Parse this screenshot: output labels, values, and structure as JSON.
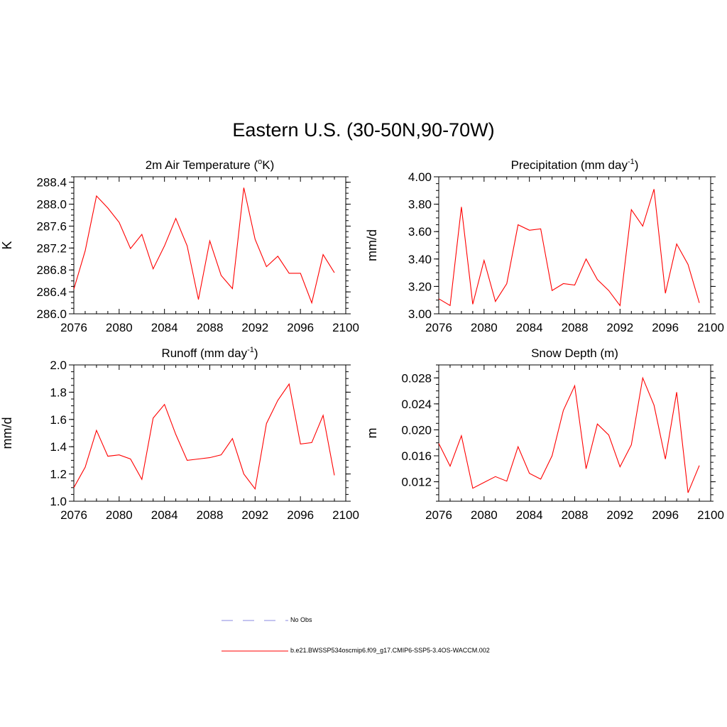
{
  "title": "Eastern U.S. (30-50N,90-70W)",
  "colors": {
    "model": "#ff0000",
    "obs": "#8a8ae0",
    "axis": "#000000"
  },
  "legend": {
    "obs_label": "No Obs",
    "model_label": "b.e21.BWSSP534oscmip6.f09_g17.CMIP6-SSP5-3.4OS-WACCM.002"
  },
  "chart_data": [
    {
      "type": "line",
      "title": "2m Air Temperature",
      "title_main": "2m Air Temperature (",
      "title_sup": "o",
      "title_tail": "K)",
      "ylabel": "K",
      "xlim": [
        2076,
        2100
      ],
      "ylim": [
        286.0,
        288.5
      ],
      "x_ticks": [
        2076,
        2080,
        2084,
        2088,
        2092,
        2096,
        2100
      ],
      "x_tick_labels": [
        "2076",
        "2080",
        "2084",
        "2088",
        "2092",
        "2096",
        "2100"
      ],
      "y_ticks": [
        286.0,
        286.4,
        286.8,
        287.2,
        287.6,
        288.0,
        288.4
      ],
      "y_tick_labels": [
        "286.0",
        "286.4",
        "286.8",
        "287.2",
        "287.6",
        "288.0",
        "288.4"
      ],
      "x": [
        2076,
        2077,
        2078,
        2079,
        2080,
        2081,
        2082,
        2083,
        2084,
        2085,
        2086,
        2087,
        2088,
        2089,
        2090,
        2091,
        2092,
        2093,
        2094,
        2095,
        2096,
        2097,
        2098,
        2099
      ],
      "values": [
        286.45,
        287.15,
        288.15,
        287.93,
        287.67,
        287.19,
        287.45,
        286.82,
        287.24,
        287.74,
        287.24,
        286.26,
        287.33,
        286.7,
        286.46,
        288.3,
        287.36,
        286.86,
        287.05,
        286.74,
        286.74,
        286.2,
        287.08,
        286.75
      ]
    },
    {
      "type": "line",
      "title": "Precipitation",
      "title_main": "Precipitation (mm day",
      "title_sup": "-1",
      "title_tail": ")",
      "ylabel": "mm/d",
      "xlim": [
        2076,
        2100
      ],
      "ylim": [
        3.0,
        4.0
      ],
      "x_ticks": [
        2076,
        2080,
        2084,
        2088,
        2092,
        2096,
        2100
      ],
      "x_tick_labels": [
        "2076",
        "2080",
        "2084",
        "2088",
        "2092",
        "2096",
        "2100"
      ],
      "y_ticks": [
        3.0,
        3.2,
        3.4,
        3.6,
        3.8,
        4.0
      ],
      "y_tick_labels": [
        "3.00",
        "3.20",
        "3.40",
        "3.60",
        "3.80",
        "4.00"
      ],
      "x": [
        2076,
        2077,
        2078,
        2079,
        2080,
        2081,
        2082,
        2083,
        2084,
        2085,
        2086,
        2087,
        2088,
        2089,
        2090,
        2091,
        2092,
        2093,
        2094,
        2095,
        2096,
        2097,
        2098,
        2099
      ],
      "values": [
        3.11,
        3.06,
        3.78,
        3.07,
        3.39,
        3.09,
        3.22,
        3.65,
        3.61,
        3.62,
        3.17,
        3.22,
        3.21,
        3.4,
        3.25,
        3.17,
        3.06,
        3.76,
        3.64,
        3.91,
        3.15,
        3.51,
        3.36,
        3.08
      ]
    },
    {
      "type": "line",
      "title": "Runoff",
      "title_main": "Runoff (mm day",
      "title_sup": "-1",
      "title_tail": ")",
      "ylabel": "mm/d",
      "xlim": [
        2076,
        2100
      ],
      "ylim": [
        1.0,
        2.0
      ],
      "x_ticks": [
        2076,
        2080,
        2084,
        2088,
        2092,
        2096,
        2100
      ],
      "x_tick_labels": [
        "2076",
        "2080",
        "2084",
        "2088",
        "2092",
        "2096",
        "2100"
      ],
      "y_ticks": [
        1.0,
        1.2,
        1.4,
        1.6,
        1.8,
        2.0
      ],
      "y_tick_labels": [
        "1.0",
        "1.2",
        "1.4",
        "1.6",
        "1.8",
        "2.0"
      ],
      "x": [
        2076,
        2077,
        2078,
        2079,
        2080,
        2081,
        2082,
        2083,
        2084,
        2085,
        2086,
        2087,
        2088,
        2089,
        2090,
        2091,
        2092,
        2093,
        2094,
        2095,
        2096,
        2097,
        2098,
        2099
      ],
      "values": [
        1.1,
        1.25,
        1.52,
        1.33,
        1.34,
        1.31,
        1.16,
        1.61,
        1.71,
        1.49,
        1.3,
        1.31,
        1.32,
        1.34,
        1.46,
        1.2,
        1.09,
        1.57,
        1.74,
        1.86,
        1.42,
        1.43,
        1.63,
        1.19
      ]
    },
    {
      "type": "line",
      "title": "Snow Depth (m)",
      "title_main": "Snow Depth (m)",
      "title_sup": "",
      "title_tail": "",
      "ylabel": "m",
      "xlim": [
        2076,
        2100
      ],
      "ylim": [
        0.009,
        0.03
      ],
      "x_ticks": [
        2076,
        2080,
        2084,
        2088,
        2092,
        2096,
        2100
      ],
      "x_tick_labels": [
        "2076",
        "2080",
        "2084",
        "2088",
        "2092",
        "2096",
        "2100"
      ],
      "y_ticks": [
        0.012,
        0.016,
        0.02,
        0.024,
        0.028
      ],
      "y_tick_labels": [
        "0.012",
        "0.016",
        "0.020",
        "0.024",
        "0.028"
      ],
      "x": [
        2076,
        2077,
        2078,
        2079,
        2080,
        2081,
        2082,
        2083,
        2084,
        2085,
        2086,
        2087,
        2088,
        2089,
        2090,
        2091,
        2092,
        2093,
        2094,
        2095,
        2096,
        2097,
        2098,
        2099
      ],
      "values": [
        0.0179,
        0.0144,
        0.0191,
        0.011,
        0.0119,
        0.0128,
        0.0121,
        0.0174,
        0.0133,
        0.0124,
        0.016,
        0.023,
        0.0268,
        0.014,
        0.0209,
        0.0192,
        0.0143,
        0.0177,
        0.028,
        0.0238,
        0.0155,
        0.0258,
        0.0103,
        0.0145
      ]
    }
  ]
}
